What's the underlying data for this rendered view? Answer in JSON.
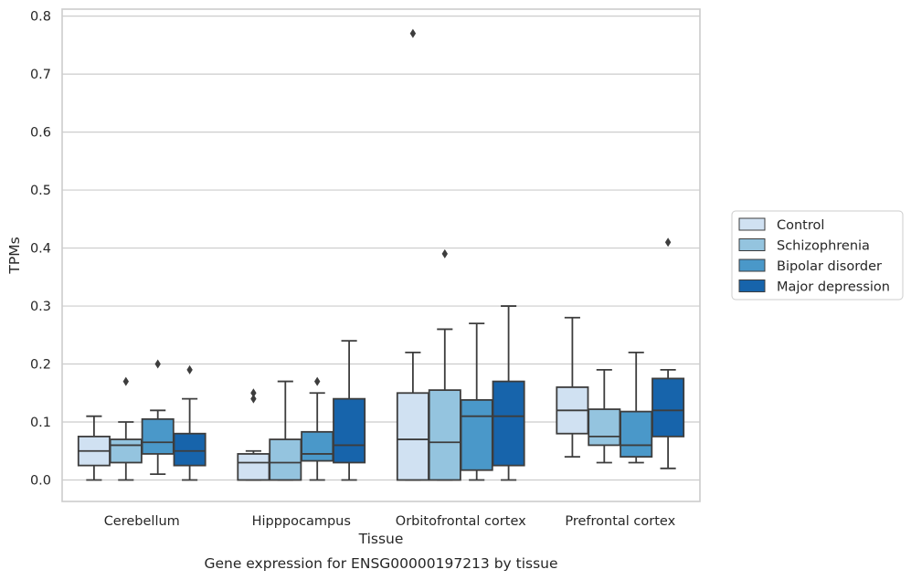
{
  "chart_data": {
    "type": "boxplot",
    "title": "Gene expression for ENSG00000197213 by tissue",
    "xlabel": "Tissue",
    "ylabel": "TPMs",
    "ylim": [
      -0.037,
      0.812
    ],
    "yticks": [
      "0.0",
      "0.1",
      "0.2",
      "0.3",
      "0.4",
      "0.5",
      "0.6",
      "0.7",
      "0.8"
    ],
    "grid": "horizontal",
    "legend_position": "right",
    "categories": [
      "Cerebellum",
      "Hipppocampus",
      "Orbitofrontal cortex",
      "Prefrontal cortex"
    ],
    "series": [
      {
        "name": "Control",
        "color": "#d0e1f2",
        "boxes": [
          {
            "whislo": 0.0,
            "q1": 0.025,
            "med": 0.05,
            "q3": 0.075,
            "whishi": 0.11,
            "fliers": []
          },
          {
            "whislo": 0.0,
            "q1": 0.0,
            "med": 0.03,
            "q3": 0.045,
            "whishi": 0.05,
            "fliers": [
              0.14,
              0.15
            ]
          },
          {
            "whislo": 0.0,
            "q1": 0.0,
            "med": 0.07,
            "q3": 0.15,
            "whishi": 0.22,
            "fliers": [
              0.77
            ]
          },
          {
            "whislo": 0.04,
            "q1": 0.08,
            "med": 0.12,
            "q3": 0.16,
            "whishi": 0.28,
            "fliers": []
          }
        ]
      },
      {
        "name": "Schizophrenia",
        "color": "#94c4df",
        "boxes": [
          {
            "whislo": 0.0,
            "q1": 0.03,
            "med": 0.06,
            "q3": 0.07,
            "whishi": 0.1,
            "fliers": [
              0.17
            ]
          },
          {
            "whislo": 0.0,
            "q1": 0.0,
            "med": 0.03,
            "q3": 0.07,
            "whishi": 0.17,
            "fliers": []
          },
          {
            "whislo": 0.0,
            "q1": 0.0,
            "med": 0.065,
            "q3": 0.155,
            "whishi": 0.26,
            "fliers": [
              0.39
            ]
          },
          {
            "whislo": 0.03,
            "q1": 0.06,
            "med": 0.075,
            "q3": 0.122,
            "whishi": 0.19,
            "fliers": []
          }
        ]
      },
      {
        "name": "Bipolar disorder",
        "color": "#4a98c9",
        "boxes": [
          {
            "whislo": 0.01,
            "q1": 0.045,
            "med": 0.065,
            "q3": 0.105,
            "whishi": 0.12,
            "fliers": [
              0.2
            ]
          },
          {
            "whislo": 0.0,
            "q1": 0.033,
            "med": 0.045,
            "q3": 0.083,
            "whishi": 0.15,
            "fliers": [
              0.17
            ]
          },
          {
            "whislo": 0.0,
            "q1": 0.017,
            "med": 0.11,
            "q3": 0.138,
            "whishi": 0.27,
            "fliers": []
          },
          {
            "whislo": 0.03,
            "q1": 0.04,
            "med": 0.06,
            "q3": 0.118,
            "whishi": 0.22,
            "fliers": []
          }
        ]
      },
      {
        "name": "Major depression",
        "color": "#1764ab",
        "boxes": [
          {
            "whislo": 0.0,
            "q1": 0.025,
            "med": 0.05,
            "q3": 0.08,
            "whishi": 0.14,
            "fliers": [
              0.19
            ]
          },
          {
            "whislo": 0.0,
            "q1": 0.03,
            "med": 0.06,
            "q3": 0.14,
            "whishi": 0.24,
            "fliers": []
          },
          {
            "whislo": 0.0,
            "q1": 0.025,
            "med": 0.11,
            "q3": 0.17,
            "whishi": 0.3,
            "fliers": []
          },
          {
            "whislo": 0.02,
            "q1": 0.075,
            "med": 0.12,
            "q3": 0.175,
            "whishi": 0.19,
            "fliers": [
              0.41
            ]
          }
        ]
      }
    ]
  }
}
